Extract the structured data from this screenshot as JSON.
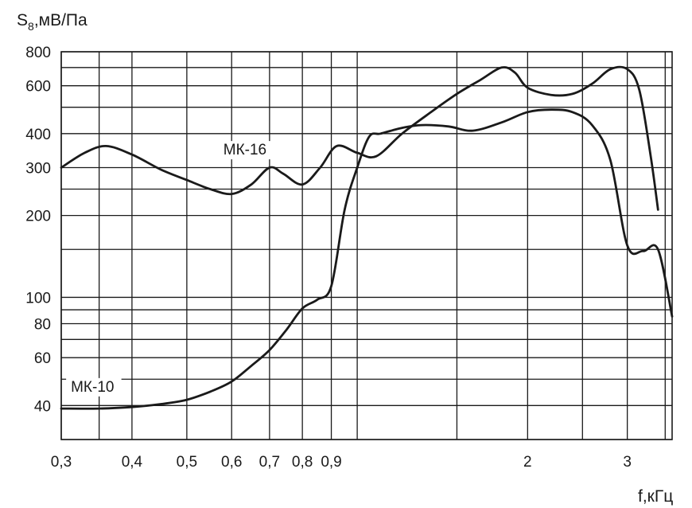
{
  "chart_data": {
    "type": "line",
    "xlabel": "f,кГц",
    "ylabel_main": "S",
    "ylabel_sub": "8",
    "ylabel_rest": ",мВ/Па",
    "xscale": "log",
    "yscale": "log",
    "xlim": [
      0.3,
      3.6
    ],
    "ylim": [
      30,
      800
    ],
    "grid": true,
    "x_ticks": [
      {
        "value": 0.3,
        "label": "0,3"
      },
      {
        "value": 0.4,
        "label": "0,4"
      },
      {
        "value": 0.5,
        "label": "0,5"
      },
      {
        "value": 0.6,
        "label": "0,6"
      },
      {
        "value": 0.7,
        "label": "0,7"
      },
      {
        "value": 0.8,
        "label": "0,8"
      },
      {
        "value": 0.9,
        "label": "0,9"
      },
      {
        "value": 2,
        "label": "2"
      },
      {
        "value": 3,
        "label": "3"
      }
    ],
    "x_grid": [
      0.3,
      0.35,
      0.4,
      0.5,
      0.6,
      0.7,
      0.8,
      0.9,
      1.0,
      1.5,
      2.0,
      2.5,
      3.0,
      3.5
    ],
    "y_ticks": [
      {
        "value": 40,
        "label": "40"
      },
      {
        "value": 60,
        "label": "60"
      },
      {
        "value": 80,
        "label": "80"
      },
      {
        "value": 100,
        "label": "100"
      },
      {
        "value": 200,
        "label": "200"
      },
      {
        "value": 300,
        "label": "300"
      },
      {
        "value": 400,
        "label": "400"
      },
      {
        "value": 600,
        "label": "600"
      },
      {
        "value": 800,
        "label": "800"
      }
    ],
    "y_grid": [
      30,
      40,
      50,
      60,
      70,
      80,
      90,
      100,
      150,
      200,
      250,
      300,
      400,
      500,
      600,
      700,
      800
    ],
    "series": [
      {
        "name": "МК-16",
        "label_at": {
          "x": 0.58,
          "y": 335
        },
        "x": [
          0.3,
          0.33,
          0.36,
          0.4,
          0.45,
          0.5,
          0.55,
          0.6,
          0.65,
          0.7,
          0.74,
          0.8,
          0.86,
          0.92,
          1.0,
          1.08,
          1.2,
          1.35,
          1.5,
          1.65,
          1.8,
          1.9,
          2.0,
          2.2,
          2.4,
          2.6,
          2.8,
          3.0,
          3.15,
          3.3,
          3.4
        ],
        "values": [
          300,
          340,
          360,
          335,
          295,
          270,
          250,
          240,
          260,
          300,
          285,
          260,
          300,
          360,
          340,
          330,
          400,
          480,
          560,
          630,
          700,
          670,
          590,
          555,
          560,
          610,
          690,
          690,
          580,
          330,
          210
        ]
      },
      {
        "name": "МК-10",
        "label_at": {
          "x": 0.312,
          "y": 45
        },
        "x": [
          0.3,
          0.35,
          0.4,
          0.45,
          0.5,
          0.55,
          0.6,
          0.65,
          0.7,
          0.75,
          0.8,
          0.85,
          0.9,
          0.95,
          1.0,
          1.05,
          1.1,
          1.2,
          1.3,
          1.45,
          1.6,
          1.8,
          2.0,
          2.2,
          2.4,
          2.6,
          2.8,
          3.0,
          3.2,
          3.4,
          3.6
        ],
        "values": [
          39,
          39,
          39.5,
          40.5,
          42,
          45,
          49,
          56,
          64,
          76,
          91,
          98,
          110,
          210,
          300,
          390,
          400,
          420,
          430,
          425,
          410,
          440,
          480,
          490,
          480,
          430,
          320,
          155,
          148,
          150,
          85
        ]
      }
    ]
  }
}
